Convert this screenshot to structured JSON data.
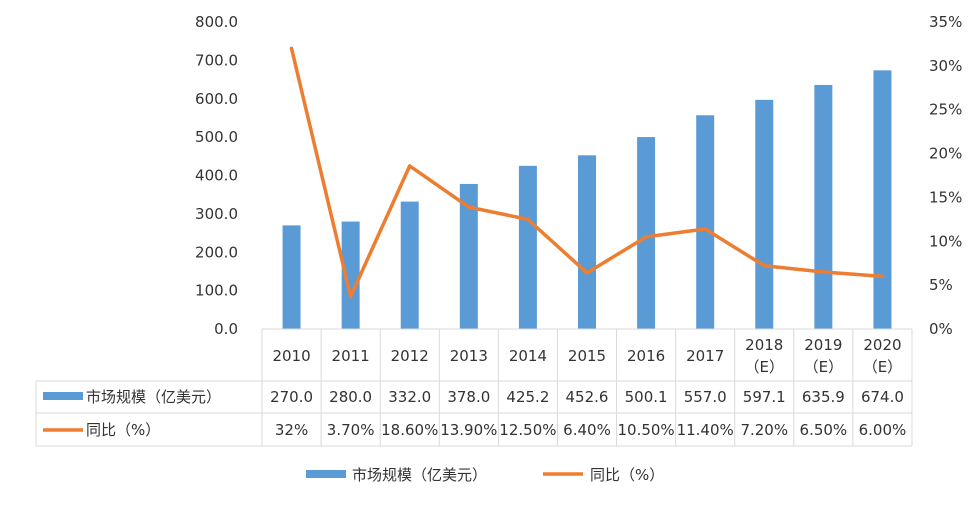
{
  "chart_data": {
    "type": "bar",
    "categories": [
      [
        "2010"
      ],
      [
        "2011"
      ],
      [
        "2012"
      ],
      [
        "2013"
      ],
      [
        "2014"
      ],
      [
        "2015"
      ],
      [
        "2016"
      ],
      [
        "2017"
      ],
      [
        "2018",
        "（E）"
      ],
      [
        "2019",
        "（E）"
      ],
      [
        "2020",
        "（E）"
      ]
    ],
    "series": [
      {
        "name": "市场规模（亿美元）",
        "type": "bar",
        "axis": "left",
        "color": "#5B9BD5",
        "values": [
          270.0,
          280.0,
          332.0,
          378.0,
          425.2,
          452.6,
          500.1,
          557.0,
          597.1,
          635.9,
          674.0
        ],
        "labels": [
          "270.0",
          "280.0",
          "332.0",
          "378.0",
          "425.2",
          "452.6",
          "500.1",
          "557.0",
          "597.1",
          "635.9",
          "674.0"
        ]
      },
      {
        "name": "同比（%）",
        "type": "line",
        "axis": "right",
        "color": "#ED7D31",
        "values": [
          32,
          3.7,
          18.6,
          13.9,
          12.5,
          6.4,
          10.5,
          11.4,
          7.2,
          6.5,
          6.0
        ],
        "labels": [
          "32%",
          "3.70%",
          "18.60%",
          "13.90%",
          "12.50%",
          "6.40%",
          "10.50%",
          "11.40%",
          "7.20%",
          "6.50%",
          "6.00%"
        ]
      }
    ],
    "y_left": {
      "range": [
        0,
        800
      ],
      "ticks": [
        0,
        100,
        200,
        300,
        400,
        500,
        600,
        700,
        800
      ],
      "tick_labels": [
        "0.0",
        "100.0",
        "200.0",
        "300.0",
        "400.0",
        "500.0",
        "600.0",
        "700.0",
        "800.0"
      ]
    },
    "y_right": {
      "range": [
        0,
        35
      ],
      "ticks": [
        0,
        5,
        10,
        15,
        20,
        25,
        30,
        35
      ],
      "tick_labels": [
        "0%",
        "5%",
        "10%",
        "15%",
        "20%",
        "25%",
        "30%",
        "35%"
      ]
    },
    "grid": false,
    "data_table": true,
    "legend_position": "bottom"
  }
}
